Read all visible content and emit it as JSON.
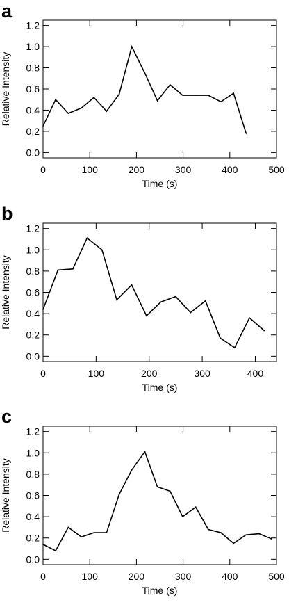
{
  "chart_data": [
    {
      "panel_label": "a",
      "type": "line",
      "xlabel": "Time (s)",
      "ylabel": "Relative Intensity",
      "xlim": [
        0,
        500
      ],
      "ylim": [
        -0.05,
        1.25
      ],
      "xticks": [
        0,
        100,
        200,
        300,
        400,
        500
      ],
      "yticks": [
        0.0,
        0.2,
        0.4,
        0.6,
        0.8,
        1.0,
        1.2
      ],
      "xtick_labels": [
        "0",
        "100",
        "200",
        "300",
        "400",
        "500"
      ],
      "ytick_labels": [
        "0.0",
        "0.2",
        "0.4",
        "0.6",
        "0.8",
        "1.0",
        "1.2"
      ],
      "grid": false,
      "x": [
        0,
        27,
        54,
        82,
        109,
        136,
        163,
        190,
        218,
        245,
        272,
        299,
        327,
        354,
        381,
        408,
        435
      ],
      "y": [
        0.25,
        0.5,
        0.37,
        0.42,
        0.52,
        0.39,
        0.55,
        1.0,
        0.75,
        0.49,
        0.64,
        0.54,
        0.54,
        0.54,
        0.48,
        0.56,
        0.18
      ]
    },
    {
      "panel_label": "b",
      "type": "line",
      "xlabel": "Time (s)",
      "ylabel": "Relative Intensity",
      "xlim": [
        0,
        440
      ],
      "ylim": [
        -0.05,
        1.25
      ],
      "xticks": [
        0,
        100,
        200,
        300,
        400
      ],
      "yticks": [
        0.0,
        0.2,
        0.4,
        0.6,
        0.8,
        1.0,
        1.2
      ],
      "xtick_labels": [
        "0",
        "100",
        "200",
        "300",
        "400"
      ],
      "ytick_labels": [
        "0.0",
        "0.2",
        "0.4",
        "0.6",
        "0.8",
        "1.0",
        "1.2"
      ],
      "grid": false,
      "x": [
        0,
        28,
        56,
        83,
        111,
        139,
        167,
        195,
        222,
        250,
        278,
        306,
        334,
        361,
        389,
        417
      ],
      "y": [
        0.44,
        0.81,
        0.82,
        1.11,
        1.0,
        0.53,
        0.67,
        0.38,
        0.51,
        0.56,
        0.41,
        0.52,
        0.17,
        0.08,
        0.36,
        0.24
      ]
    },
    {
      "panel_label": "c",
      "type": "line",
      "xlabel": "Time (s)",
      "ylabel": "Relative Intensity",
      "xlim": [
        0,
        500
      ],
      "ylim": [
        -0.05,
        1.25
      ],
      "xticks": [
        0,
        100,
        200,
        300,
        400,
        500
      ],
      "yticks": [
        0.0,
        0.2,
        0.4,
        0.6,
        0.8,
        1.0,
        1.2
      ],
      "xtick_labels": [
        "0",
        "100",
        "200",
        "300",
        "400",
        "500"
      ],
      "ytick_labels": [
        "0.0",
        "0.2",
        "0.4",
        "0.6",
        "0.8",
        "1.0",
        "1.2"
      ],
      "grid": false,
      "x": [
        0,
        27,
        54,
        82,
        109,
        136,
        163,
        190,
        218,
        245,
        272,
        299,
        327,
        354,
        381,
        408,
        435,
        463,
        490
      ],
      "y": [
        0.14,
        0.08,
        0.3,
        0.21,
        0.25,
        0.25,
        0.61,
        0.84,
        1.01,
        0.68,
        0.64,
        0.4,
        0.49,
        0.28,
        0.25,
        0.15,
        0.23,
        0.24,
        0.19
      ]
    }
  ]
}
